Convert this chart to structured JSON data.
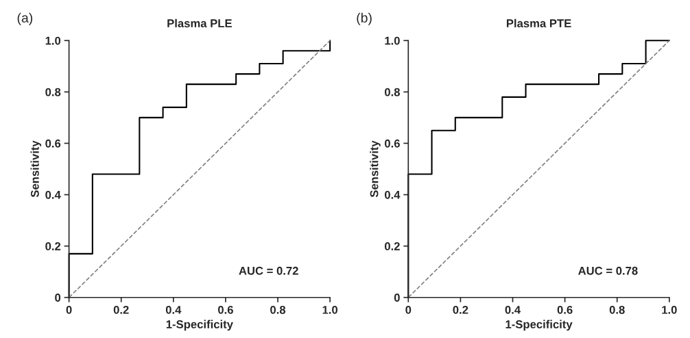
{
  "chart_data": [
    {
      "type": "step",
      "title": "Plasma PLE",
      "xlabel": "1-Specificity",
      "ylabel": "Sensitivity",
      "annotations": [
        "(a)",
        "AUC = 0.72"
      ],
      "xlim": [
        0,
        1.0
      ],
      "ylim": [
        0,
        1.0
      ],
      "xticks": [
        0,
        0.2,
        0.4,
        0.6,
        0.8,
        {
          "value": 1,
          "label": "1.0"
        }
      ],
      "yticks": [
        0,
        0.2,
        0.4,
        0.6,
        0.8,
        {
          "value": 1,
          "label": "1.0"
        }
      ],
      "grid": false,
      "legend": false,
      "series": [
        {
          "type": "step",
          "color": "#000000",
          "line_style": "solid",
          "x": [
            0,
            0,
            0.09,
            0.27,
            0.36,
            0.45,
            0.64,
            0.73,
            0.82,
            1.0,
            1.0
          ],
          "values": [
            0,
            0.17,
            0.48,
            0.7,
            0.74,
            0.83,
            0.87,
            0.91,
            0.96,
            0.96,
            1.0
          ]
        },
        {
          "type": "line",
          "color": "#808080",
          "line_style": "dashed",
          "x": [
            0,
            1.0
          ],
          "values": [
            0,
            1.0
          ]
        }
      ]
    },
    {
      "type": "step",
      "title": "Plasma PTE",
      "xlabel": "1-Specificity",
      "ylabel": "Sensitivity",
      "annotations": [
        "(b)",
        "AUC = 0.78"
      ],
      "xlim": [
        0,
        1.0
      ],
      "ylim": [
        0,
        1.0
      ],
      "xticks": [
        0,
        0.2,
        0.4,
        0.6,
        0.8,
        {
          "value": 1,
          "label": "1.0"
        }
      ],
      "yticks": [
        0,
        0.2,
        0.4,
        0.6,
        0.8,
        {
          "value": 1,
          "label": "1.0"
        }
      ],
      "grid": false,
      "legend": false,
      "series": [
        {
          "type": "step",
          "color": "#000000",
          "line_style": "solid",
          "x": [
            0,
            0,
            0.09,
            0.18,
            0.36,
            0.45,
            0.73,
            0.82,
            0.91,
            1.0
          ],
          "values": [
            0,
            0.48,
            0.65,
            0.7,
            0.78,
            0.83,
            0.87,
            0.91,
            1.0,
            1.0
          ]
        },
        {
          "type": "line",
          "color": "#808080",
          "line_style": "dashed",
          "x": [
            0,
            1.0
          ],
          "values": [
            0,
            1.0
          ]
        }
      ]
    }
  ]
}
